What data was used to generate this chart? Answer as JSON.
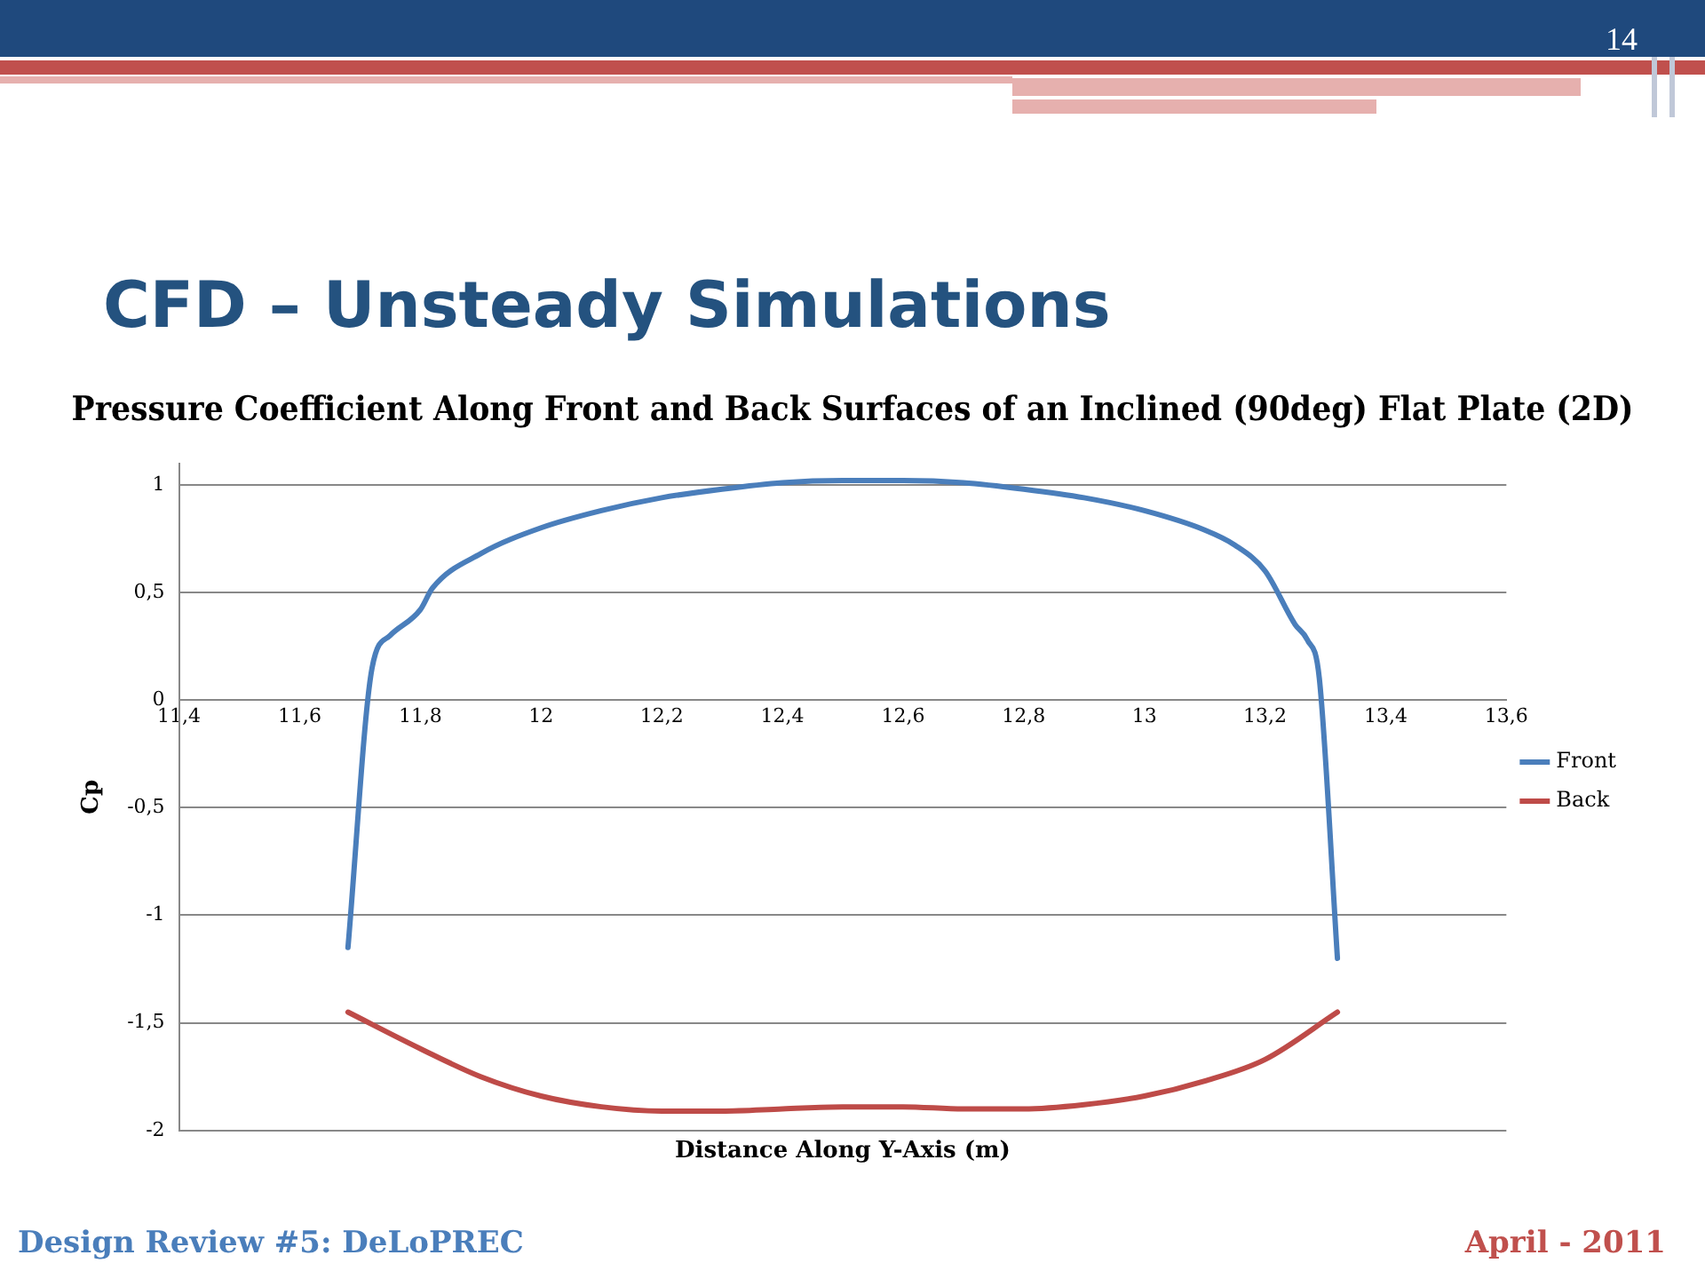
{
  "chart_data": {
    "type": "line",
    "title": "Pressure Coefficient Along Front and Back Surfaces of an Inclined (90deg) Flat Plate (2D)",
    "xlabel": "Distance Along Y-Axis (m)",
    "ylabel": "Cp",
    "annotations": [
      "CFD – Unsteady Simulations",
      "14",
      "Design Review #5: DeLoPREC",
      "April - 2011"
    ],
    "xlim": [
      11.4,
      13.6
    ],
    "ylim": [
      -2,
      1.1
    ],
    "xticks": [
      {
        "value": 11.4,
        "label": "11,4"
      },
      {
        "value": 11.6,
        "label": "11,6"
      },
      {
        "value": 11.8,
        "label": "11,8"
      },
      12,
      {
        "value": 12.2,
        "label": "12,2"
      },
      {
        "value": 12.4,
        "label": "12,4"
      },
      {
        "value": 12.6,
        "label": "12,6"
      },
      {
        "value": 12.8,
        "label": "12,8"
      },
      13,
      {
        "value": 13.2,
        "label": "13,2"
      },
      {
        "value": 13.4,
        "label": "13,4"
      },
      {
        "value": 13.6,
        "label": "13,6"
      }
    ],
    "yticks": [
      -2,
      {
        "value": -1.5,
        "label": "-1,5"
      },
      -1,
      {
        "value": -0.5,
        "label": "-0,5"
      },
      0,
      {
        "value": 0.5,
        "label": "0,5"
      },
      1
    ],
    "grid": "y",
    "legend": "right",
    "marker": "none",
    "line_style": "solid",
    "series": [
      {
        "name": "Front",
        "color": "#4a7ebb",
        "x": [
          11.68,
          11.72,
          11.75,
          11.8,
          11.82,
          11.9,
          12.0,
          12.1,
          12.2,
          12.3,
          12.4,
          12.5,
          12.6,
          12.7,
          12.8,
          12.9,
          13.0,
          13.1,
          13.15,
          13.2,
          13.25,
          13.27,
          13.29,
          13.32
        ],
        "values": [
          -1.15,
          0.15,
          0.3,
          0.42,
          0.52,
          0.68,
          0.8,
          0.88,
          0.94,
          0.98,
          1.01,
          1.02,
          1.02,
          1.01,
          0.98,
          0.94,
          0.88,
          0.79,
          0.72,
          0.6,
          0.35,
          0.28,
          0.1,
          -1.2
        ]
      },
      {
        "name": "Back",
        "color": "#be4b48",
        "x": [
          11.68,
          11.8,
          11.9,
          12.0,
          12.1,
          12.2,
          12.3,
          12.4,
          12.5,
          12.6,
          12.7,
          12.8,
          12.9,
          13.0,
          13.1,
          13.2,
          13.32
        ],
        "values": [
          -1.45,
          -1.62,
          -1.75,
          -1.84,
          -1.89,
          -1.91,
          -1.91,
          -1.9,
          -1.89,
          -1.89,
          -1.9,
          -1.9,
          -1.88,
          -1.84,
          -1.77,
          -1.67,
          -1.45
        ]
      }
    ]
  }
}
